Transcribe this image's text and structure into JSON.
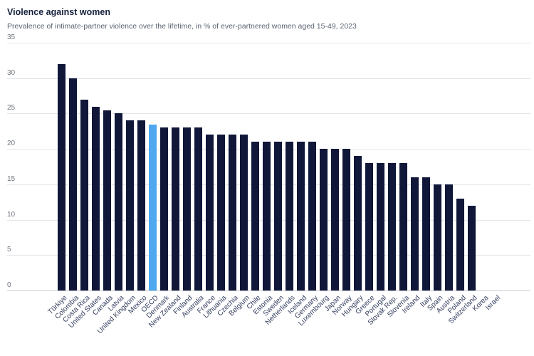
{
  "header": {
    "title": "Violence against women",
    "subtitle": "Prevalence of intimate-partner violence over the lifetime, in % of ever-partnered women aged 15-49, 2023"
  },
  "colors": {
    "bar": "#101739",
    "highlight": "#4fa8f0",
    "gridline": "#e3e5e8",
    "title_text": "#15203c",
    "subtitle_text": "#5a6472",
    "axis_label_text": "#333d5e"
  },
  "chart_data": {
    "type": "bar",
    "title": "Violence against women",
    "subtitle": "Prevalence of intimate-partner violence over the lifetime, in % of ever-partnered women aged 15-49, 2023",
    "xlabel": "",
    "ylabel": "",
    "ylim": [
      0,
      35
    ],
    "yticks": [
      0,
      5,
      10,
      15,
      20,
      25,
      30,
      35
    ],
    "grid": "horizontal",
    "legend": "none",
    "highlight_category": "OECD",
    "categories": [
      "Türkiye",
      "Colombia",
      "Costa Rica",
      "United States",
      "Canada",
      "Latvia",
      "United Kingdom",
      "Mexico",
      "OECD",
      "Denmark",
      "New Zealand",
      "Finland",
      "Australia",
      "France",
      "Lithuania",
      "Czechia",
      "Belgium",
      "Chile",
      "Estonia",
      "Sweden",
      "Netherlands",
      "Iceland",
      "Germany",
      "Luxembourg",
      "Japan",
      "Norway",
      "Hungary",
      "Greece",
      "Portugal",
      "Slovak Rep.",
      "Slovenia",
      "Ireland",
      "Italy",
      "Spain",
      "Austria",
      "Poland",
      "Switzerland",
      "Korea",
      "Israel"
    ],
    "values": [
      32,
      30,
      27,
      26,
      25.5,
      25,
      24,
      24,
      23.4,
      23,
      23,
      23,
      23,
      22,
      22,
      22,
      22,
      21,
      21,
      21,
      21,
      21,
      21,
      20,
      20,
      20,
      19,
      18,
      18,
      18,
      18,
      16,
      16,
      15,
      15,
      13,
      12,
      null,
      null
    ]
  }
}
